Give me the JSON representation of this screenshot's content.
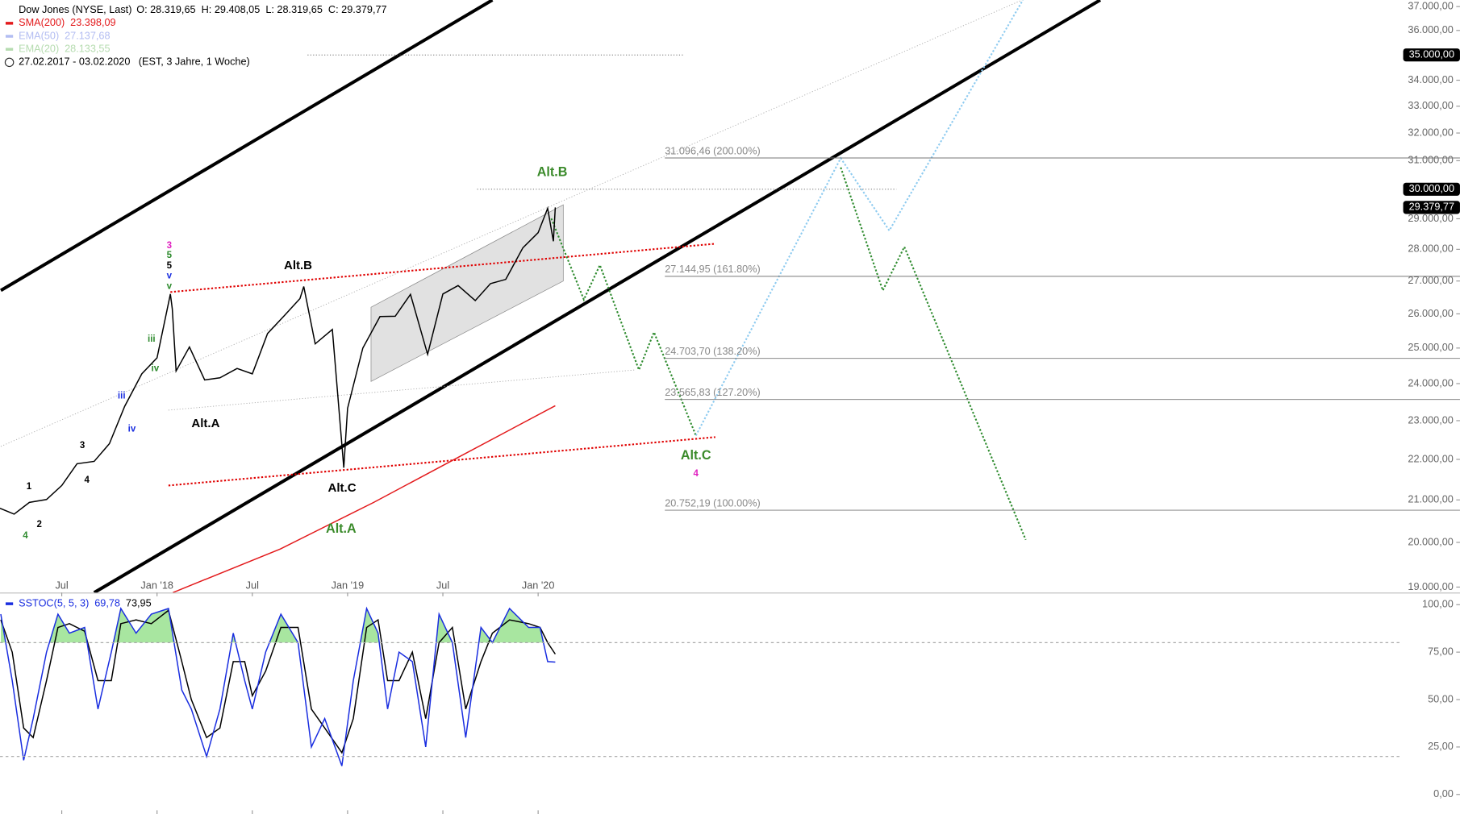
{
  "chart_data": [
    {
      "type": "line",
      "title": "Dow Jones (NYSE, Last)",
      "subtitle": "O: 28.319,65  H: 29.408,05  L: 28.319,65  C: 29.379,77",
      "period": "27.02.2017 - 03.02.2020",
      "period_note": "(EST, 3 Jahre, 1 Woche)",
      "log_scale": true,
      "xlim": [
        2017.176,
        2024.53
      ],
      "xticks": [
        {
          "value": 2017.5,
          "label": "Jul"
        },
        {
          "value": 2018,
          "label": "Jan '18"
        },
        {
          "value": 2018.5,
          "label": "Jul"
        },
        {
          "value": 2019,
          "label": "Jan '19"
        },
        {
          "value": 2019.5,
          "label": "Jul"
        },
        {
          "value": 2020,
          "label": "Jan '20"
        }
      ],
      "ylim": [
        18880,
        37280
      ],
      "yticks": [
        {
          "value": 19000,
          "label": "19.000,00"
        },
        {
          "value": 20000,
          "label": "20.000,00"
        },
        {
          "value": 21000,
          "label": "21.000,00"
        },
        {
          "value": 22000,
          "label": "22.000,00"
        },
        {
          "value": 23000,
          "label": "23.000,00"
        },
        {
          "value": 24000,
          "label": "24.000,00"
        },
        {
          "value": 25000,
          "label": "25.000,00"
        },
        {
          "value": 26000,
          "label": "26.000,00"
        },
        {
          "value": 27000,
          "label": "27.000,00"
        },
        {
          "value": 28000,
          "label": "28.000,00"
        },
        {
          "value": 29000,
          "label": "29.000,00"
        },
        {
          "value": 30000,
          "label": "30.000,00"
        },
        {
          "value": 31000,
          "label": "31.000,00"
        },
        {
          "value": 32000,
          "label": "32.000,00"
        },
        {
          "value": 33000,
          "label": "33.000,00"
        },
        {
          "value": 34000,
          "label": "34.000,00"
        },
        {
          "value": 35000,
          "label": "35.000,00"
        },
        {
          "value": 36000,
          "label": "36.000,00"
        },
        {
          "value": 37000,
          "label": "37.000,00"
        }
      ],
      "series": [
        {
          "color": "#000000",
          "x": [
            2017.17,
            2017.25,
            2017.33,
            2017.42,
            2017.5,
            2017.58,
            2017.67,
            2017.75,
            2017.83,
            2017.92,
            2018.0,
            2018.07,
            2018.08,
            2018.1,
            2018.17,
            2018.25,
            2018.33,
            2018.42,
            2018.5,
            2018.58,
            2018.67,
            2018.75,
            2018.77,
            2018.83,
            2018.92,
            2018.98,
            2019.0,
            2019.08,
            2019.17,
            2019.25,
            2019.33,
            2019.42,
            2019.5,
            2019.58,
            2019.67,
            2019.75,
            2019.83,
            2019.92,
            2020.0,
            2020.05,
            2020.08,
            2020.09
          ],
          "values": [
            20810,
            20660,
            20940,
            21010,
            21350,
            21890,
            21950,
            22400,
            23380,
            24270,
            24720,
            26600,
            26150,
            24350,
            25030,
            24100,
            24160,
            24420,
            24270,
            25420,
            25960,
            26460,
            26830,
            25120,
            25540,
            21790,
            23330,
            25000,
            25920,
            25930,
            26590,
            24820,
            26600,
            26860,
            26400,
            26920,
            27050,
            28050,
            28540,
            29350,
            28260,
            29379.77
          ]
        },
        {
          "name": "SMA(200)",
          "value_label": "23.398,09",
          "color": "#e31a1c",
          "x": [
            2018.083,
            2018.647,
            2019.137,
            2019.529,
            2020.09
          ],
          "values": [
            18880,
            19850,
            20940,
            21920,
            23398.09
          ]
        }
      ],
      "indicators": [
        {
          "name": "EMA(50)",
          "value": 27137.68,
          "value_label": "27.137,68",
          "color": "#b3bdf2"
        },
        {
          "name": "EMA(20)",
          "value": 28133.55,
          "value_label": "28.133,55",
          "color": "#b6dcb0"
        }
      ],
      "price_labels": [
        {
          "value": 35000,
          "label": "35.000,00"
        },
        {
          "value": 30000,
          "label": "30.000,00"
        },
        {
          "value": 29379.77,
          "label": "29.379,77"
        }
      ],
      "fib_levels": [
        {
          "value": 31096.46,
          "label": "31.096,46 (200.00%)"
        },
        {
          "value": 27144.95,
          "label": "27.144,95 (161.80%)"
        },
        {
          "value": 24703.7,
          "label": "24.703,70 (138.20%)"
        },
        {
          "value": 23565.83,
          "label": "23.565,83 (127.20%)"
        },
        {
          "value": 20752.19,
          "label": "20.752,19 (100.00%)"
        }
      ],
      "channel": {
        "color": "#d9d9d9",
        "points": [
          [
            2019.123,
            26200
          ],
          [
            2019.123,
            24060
          ],
          [
            2020.132,
            27000
          ],
          [
            2020.132,
            29470
          ]
        ]
      },
      "lines": [
        {
          "color": "#000000",
          "style": "thick",
          "points": [
            [
              2017.18,
              26710
            ],
            [
              2019.76,
              37280
            ]
          ]
        },
        {
          "color": "#000000",
          "style": "thick",
          "points": [
            [
              2017.67,
              18880
            ],
            [
              2022.95,
              37280
            ]
          ]
        },
        {
          "color": "#e00000",
          "style": "dotted",
          "points": [
            [
              2018.07,
              26660
            ],
            [
              2020.93,
              28180
            ]
          ]
        },
        {
          "color": "#e00000",
          "style": "dotted",
          "points": [
            [
              2018.06,
              21350
            ],
            [
              2020.93,
              22570
            ]
          ]
        },
        {
          "color": "#aaaaaa",
          "style": "fine-dotted",
          "points": [
            [
              2017.18,
              22330
            ],
            [
              2022.54,
              37280
            ]
          ]
        },
        {
          "color": "#aaaaaa",
          "style": "fine-dotted",
          "points": [
            [
              2018.06,
              23280
            ],
            [
              2020.51,
              24380
            ]
          ]
        },
        {
          "color": "#555555",
          "style": "fine-dotted",
          "points": [
            [
              2018.79,
              35000
            ],
            [
              2020.76,
              35000
            ]
          ]
        },
        {
          "color": "#555555",
          "style": "fine-dotted",
          "points": [
            [
              2019.68,
              30000
            ],
            [
              2021.88,
              30000
            ]
          ]
        },
        {
          "color": "#2e8b2e",
          "style": "dotted",
          "points": [
            [
              2020.069,
              29010
            ],
            [
              2020.24,
              26430
            ],
            [
              2020.324,
              27500
            ],
            [
              2020.529,
              24380
            ],
            [
              2020.608,
              25460
            ],
            [
              2020.828,
              22610
            ]
          ]
        },
        {
          "color": "#8ecbf0",
          "style": "dotted",
          "points": [
            [
              2020.828,
              22610
            ],
            [
              2021.588,
              31090
            ],
            [
              2021.843,
              28610
            ],
            [
              2022.544,
              37280
            ]
          ]
        },
        {
          "color": "#2e8b2e",
          "style": "dotted",
          "points": [
            [
              2021.588,
              30760
            ],
            [
              2021.809,
              26710
            ],
            [
              2021.922,
              28080
            ],
            [
              2022.559,
              20060
            ]
          ]
        }
      ],
      "annotations": [
        {
          "text": "Alt.B",
          "color": "#3a8a2a",
          "style": "large",
          "x": 2020.074,
          "y": 30570
        },
        {
          "text": "Alt.B",
          "color": "#000000",
          "style": "medium",
          "x": 2018.74,
          "y": 27470
        },
        {
          "text": "Alt.A",
          "color": "#000000",
          "style": "medium",
          "x": 2018.255,
          "y": 22910
        },
        {
          "text": "Alt.C",
          "color": "#000000",
          "style": "medium",
          "x": 2018.971,
          "y": 21280
        },
        {
          "text": "Alt.A",
          "color": "#3a8a2a",
          "style": "large",
          "x": 2018.966,
          "y": 20300
        },
        {
          "text": "Alt.C",
          "color": "#3a8a2a",
          "style": "large",
          "x": 2020.828,
          "y": 22090
        },
        {
          "text": "4",
          "color": "#e020c0",
          "style": "small",
          "x": 2020.828,
          "y": 21640
        },
        {
          "text": "3",
          "color": "#e020c0",
          "style": "small",
          "x": 2018.064,
          "y": 28120
        },
        {
          "text": "5",
          "color": "#2e8b2e",
          "style": "small",
          "x": 2018.064,
          "y": 27800
        },
        {
          "text": "5",
          "color": "#000000",
          "style": "small",
          "x": 2018.064,
          "y": 27470
        },
        {
          "text": "v",
          "color": "#1a2ee0",
          "style": "small",
          "x": 2018.064,
          "y": 27150
        },
        {
          "text": "v",
          "color": "#2e8b2e",
          "style": "small",
          "x": 2018.064,
          "y": 26830
        },
        {
          "text": "1",
          "color": "#000000",
          "style": "small",
          "x": 2017.328,
          "y": 21320
        },
        {
          "text": "2",
          "color": "#000000",
          "style": "small",
          "x": 2017.382,
          "y": 20410
        },
        {
          "text": "3",
          "color": "#000000",
          "style": "small",
          "x": 2017.608,
          "y": 22350
        },
        {
          "text": "4",
          "color": "#000000",
          "style": "small",
          "x": 2017.632,
          "y": 21480
        },
        {
          "text": "4",
          "color": "#2e8b2e",
          "style": "small",
          "x": 2017.309,
          "y": 20150
        },
        {
          "text": "iii",
          "color": "#1a2ee0",
          "style": "small",
          "x": 2017.814,
          "y": 23660
        },
        {
          "text": "iv",
          "color": "#1a2ee0",
          "style": "small",
          "x": 2017.868,
          "y": 22780
        },
        {
          "text": "iv",
          "color": "#2e8b2e",
          "style": "small",
          "x": 2017.99,
          "y": 24420
        },
        {
          "text": "iii",
          "color": "#2e8b2e",
          "style": "small",
          "x": 2017.971,
          "y": 25250
        }
      ]
    },
    {
      "type": "line",
      "title": "SSTOC(5, 5, 3)",
      "xlim": [
        2017.176,
        2024.53
      ],
      "ylim": [
        -10.3,
        104.9
      ],
      "yticks": [
        {
          "value": 0,
          "label": "0,00"
        },
        {
          "value": 25,
          "label": "25,00"
        },
        {
          "value": 50,
          "label": "50,00"
        },
        {
          "value": 75,
          "label": "75,00"
        },
        {
          "value": 100,
          "label": "100,00"
        }
      ],
      "levels": [
        20,
        80
      ],
      "fill_color": "#a8e6a0",
      "x": [
        2017.18,
        2017.24,
        2017.3,
        2017.35,
        2017.42,
        2017.48,
        2017.54,
        2017.62,
        2017.69,
        2017.76,
        2017.81,
        2017.89,
        2017.97,
        2018.06,
        2018.13,
        2018.18,
        2018.26,
        2018.33,
        2018.4,
        2018.46,
        2018.5,
        2018.57,
        2018.65,
        2018.74,
        2018.81,
        2018.88,
        2018.97,
        2019.03,
        2019.1,
        2019.16,
        2019.21,
        2019.27,
        2019.34,
        2019.41,
        2019.48,
        2019.55,
        2019.62,
        2019.7,
        2019.76,
        2019.85,
        2019.95,
        2020.01,
        2020.05,
        2020.09
      ],
      "series": [
        {
          "color": "#1a2ee0",
          "value_label": "69,78",
          "values": [
            95,
            60,
            18,
            40,
            75,
            95,
            85,
            88,
            45,
            75,
            98,
            85,
            95,
            98,
            55,
            45,
            20,
            45,
            85,
            60,
            45,
            75,
            95,
            80,
            25,
            40,
            15,
            60,
            98,
            85,
            45,
            75,
            70,
            25,
            95,
            80,
            30,
            88,
            80,
            98,
            88,
            88,
            70,
            69.78
          ]
        },
        {
          "color": "#000000",
          "value_label": "73,95",
          "values": [
            92,
            75,
            35,
            30,
            60,
            88,
            90,
            86,
            60,
            60,
            90,
            92,
            90,
            97,
            70,
            50,
            30,
            35,
            70,
            70,
            52,
            65,
            88,
            88,
            45,
            35,
            22,
            40,
            88,
            92,
            60,
            60,
            75,
            40,
            80,
            88,
            45,
            70,
            85,
            92,
            90,
            88,
            80,
            73.95
          ]
        }
      ]
    }
  ]
}
